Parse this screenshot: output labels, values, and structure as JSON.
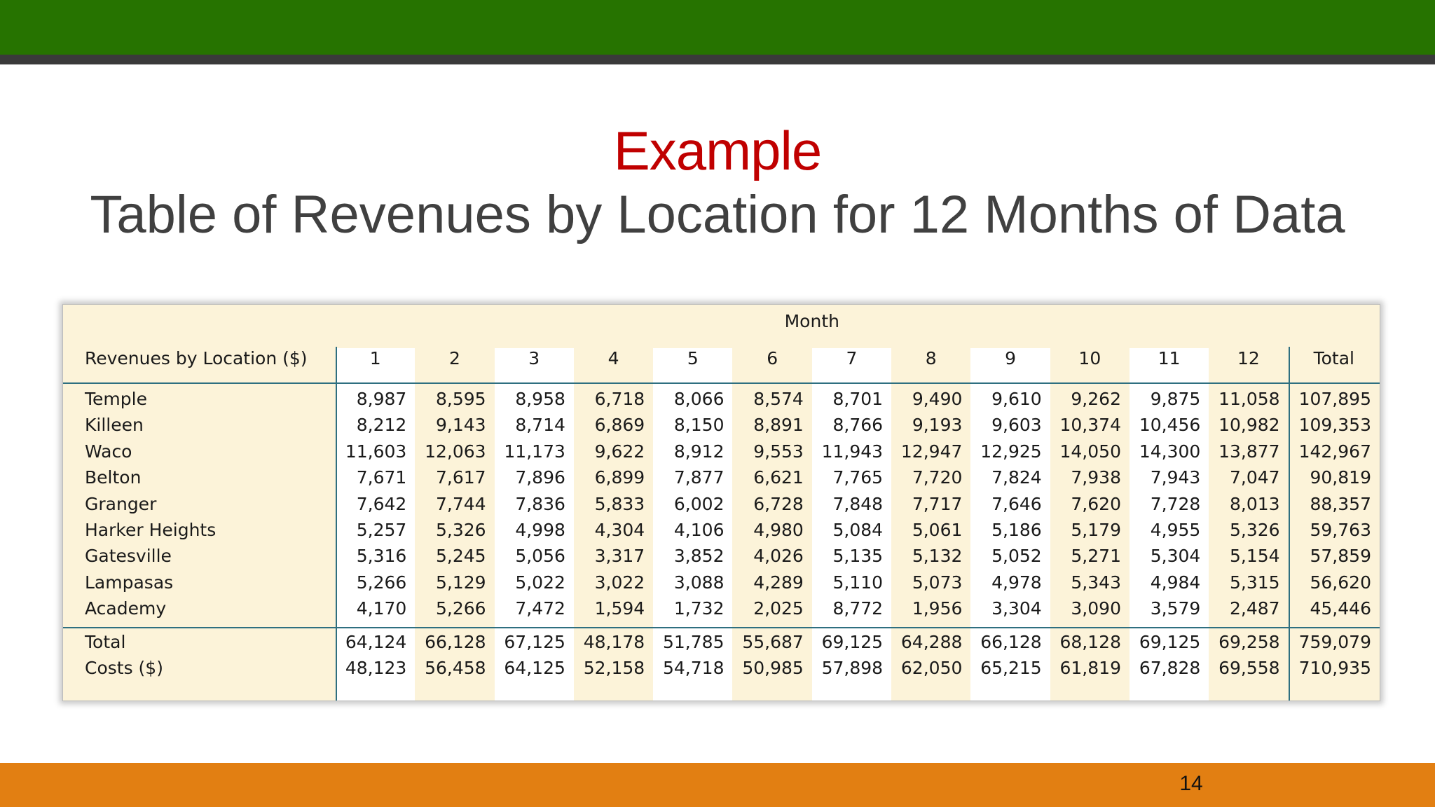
{
  "header": {
    "title": "Example",
    "subtitle": "Table of Revenues by Location for 12 Months of Data"
  },
  "table": {
    "group_header": "Month",
    "columns": [
      "Revenues by Location ($)",
      "1",
      "2",
      "3",
      "4",
      "5",
      "6",
      "7",
      "8",
      "9",
      "10",
      "11",
      "12",
      "Total"
    ],
    "rows": [
      [
        "Temple",
        "8,987",
        "8,595",
        "8,958",
        "6,718",
        "8,066",
        "8,574",
        "8,701",
        "9,490",
        "9,610",
        "9,262",
        "9,875",
        "11,058",
        "107,895"
      ],
      [
        "Killeen",
        "8,212",
        "9,143",
        "8,714",
        "6,869",
        "8,150",
        "8,891",
        "8,766",
        "9,193",
        "9,603",
        "10,374",
        "10,456",
        "10,982",
        "109,353"
      ],
      [
        "Waco",
        "11,603",
        "12,063",
        "11,173",
        "9,622",
        "8,912",
        "9,553",
        "11,943",
        "12,947",
        "12,925",
        "14,050",
        "14,300",
        "13,877",
        "142,967"
      ],
      [
        "Belton",
        "7,671",
        "7,617",
        "7,896",
        "6,899",
        "7,877",
        "6,621",
        "7,765",
        "7,720",
        "7,824",
        "7,938",
        "7,943",
        "7,047",
        "90,819"
      ],
      [
        "Granger",
        "7,642",
        "7,744",
        "7,836",
        "5,833",
        "6,002",
        "6,728",
        "7,848",
        "7,717",
        "7,646",
        "7,620",
        "7,728",
        "8,013",
        "88,357"
      ],
      [
        "Harker Heights",
        "5,257",
        "5,326",
        "4,998",
        "4,304",
        "4,106",
        "4,980",
        "5,084",
        "5,061",
        "5,186",
        "5,179",
        "4,955",
        "5,326",
        "59,763"
      ],
      [
        "Gatesville",
        "5,316",
        "5,245",
        "5,056",
        "3,317",
        "3,852",
        "4,026",
        "5,135",
        "5,132",
        "5,052",
        "5,271",
        "5,304",
        "5,154",
        "57,859"
      ],
      [
        "Lampasas",
        "5,266",
        "5,129",
        "5,022",
        "3,022",
        "3,088",
        "4,289",
        "5,110",
        "5,073",
        "4,978",
        "5,343",
        "4,984",
        "5,315",
        "56,620"
      ],
      [
        "Academy",
        "4,170",
        "5,266",
        "7,472",
        "1,594",
        "1,732",
        "2,025",
        "8,772",
        "1,956",
        "3,304",
        "3,090",
        "3,579",
        "2,487",
        "45,446"
      ]
    ],
    "footer_rows": [
      [
        "Total",
        "64,124",
        "66,128",
        "67,125",
        "48,178",
        "51,785",
        "55,687",
        "69,125",
        "64,288",
        "66,128",
        "68,128",
        "69,125",
        "69,258",
        "759,079"
      ],
      [
        "Costs ($)",
        "48,123",
        "56,458",
        "64,125",
        "52,158",
        "54,718",
        "50,985",
        "57,898",
        "62,050",
        "65,215",
        "61,819",
        "67,828",
        "69,558",
        "710,935"
      ]
    ]
  },
  "page_number": "14"
}
